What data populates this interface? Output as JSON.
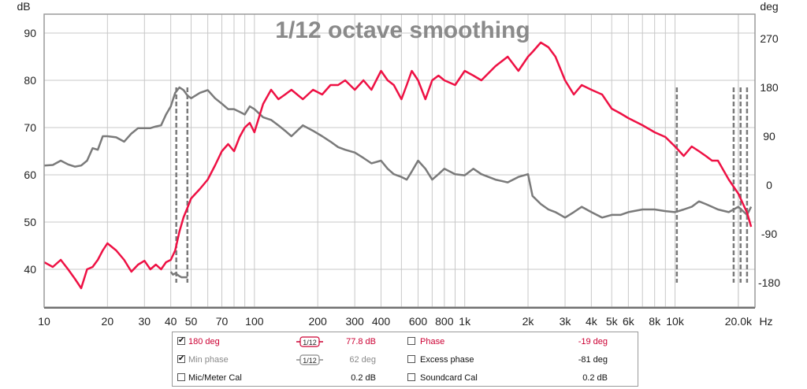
{
  "chart_data": {
    "type": "line",
    "title": "1/12 octave smoothing",
    "ylabel_left": "dB",
    "ylabel_right": "deg",
    "xlabel_unit": "Hz",
    "x_scale": "log",
    "xlim": [
      10,
      24000
    ],
    "ylim_left": [
      32,
      94
    ],
    "ylim_right": [
      -225,
      315
    ],
    "grid": true,
    "x_ticks": [
      {
        "v": 10,
        "label": "10"
      },
      {
        "v": 20,
        "label": "20"
      },
      {
        "v": 30,
        "label": "30"
      },
      {
        "v": 40,
        "label": "40"
      },
      {
        "v": 50,
        "label": "50"
      },
      {
        "v": 70,
        "label": "70"
      },
      {
        "v": 100,
        "label": "100"
      },
      {
        "v": 200,
        "label": "200"
      },
      {
        "v": 300,
        "label": "300"
      },
      {
        "v": 400,
        "label": "400"
      },
      {
        "v": 600,
        "label": "600"
      },
      {
        "v": 800,
        "label": "800"
      },
      {
        "v": 1000,
        "label": "1k"
      },
      {
        "v": 2000,
        "label": "2k"
      },
      {
        "v": 3000,
        "label": "3k"
      },
      {
        "v": 4000,
        "label": "4k"
      },
      {
        "v": 5000,
        "label": "5k"
      },
      {
        "v": 6000,
        "label": "6k"
      },
      {
        "v": 8000,
        "label": "8k"
      },
      {
        "v": 10000,
        "label": "10k"
      },
      {
        "v": 20000,
        "label": "20.0k"
      }
    ],
    "y_ticks_left": [
      {
        "v": 40,
        "label": "40"
      },
      {
        "v": 50,
        "label": "50"
      },
      {
        "v": 60,
        "label": "60"
      },
      {
        "v": 70,
        "label": "70"
      },
      {
        "v": 80,
        "label": "80"
      },
      {
        "v": 90,
        "label": "90"
      }
    ],
    "y_ticks_right": [
      {
        "v": -180,
        "label": "-180"
      },
      {
        "v": -90,
        "label": "-90"
      },
      {
        "v": 0,
        "label": "0"
      },
      {
        "v": 90,
        "label": "90"
      },
      {
        "v": 180,
        "label": "180"
      },
      {
        "v": 270,
        "label": "270"
      }
    ],
    "series": [
      {
        "name": "180 deg",
        "axis": "left",
        "color": "#ee1144",
        "x": [
          10,
          11,
          12,
          13,
          14,
          15,
          16,
          17,
          18,
          19,
          20,
          22,
          24,
          26,
          28,
          30,
          32,
          34,
          36,
          38,
          40,
          42,
          44,
          46,
          48,
          50,
          55,
          60,
          65,
          70,
          75,
          80,
          85,
          90,
          95,
          100,
          110,
          120,
          130,
          140,
          150,
          170,
          190,
          210,
          230,
          250,
          270,
          300,
          330,
          360,
          400,
          430,
          460,
          500,
          530,
          560,
          600,
          650,
          700,
          750,
          800,
          900,
          1000,
          1100,
          1200,
          1400,
          1600,
          1800,
          2000,
          2100,
          2300,
          2500,
          2700,
          3000,
          3300,
          3600,
          4000,
          4500,
          5000,
          5500,
          6000,
          7000,
          8000,
          9000,
          10000,
          11000,
          12000,
          13000,
          14000,
          15000,
          16000,
          18000,
          20000,
          22000,
          23000
        ],
        "y": [
          41.5,
          40.5,
          42,
          40,
          38,
          36,
          40,
          40.5,
          42,
          44,
          45.5,
          44,
          42,
          39.5,
          41,
          41.8,
          40,
          41,
          40,
          41.5,
          42,
          44,
          48,
          51,
          53,
          55,
          57,
          59,
          62,
          65,
          66.5,
          65,
          68,
          70,
          71,
          69,
          75,
          78,
          76,
          77,
          78,
          76,
          78,
          77,
          79,
          79,
          80,
          78,
          80,
          78,
          82,
          80,
          79,
          76,
          79,
          82,
          80,
          76,
          80,
          81,
          80,
          79,
          82,
          81,
          80,
          83,
          85,
          82,
          85,
          86,
          88,
          87,
          85,
          80,
          77,
          79,
          78,
          77,
          74,
          73,
          72,
          70.5,
          69,
          68,
          66,
          64,
          66,
          65,
          64,
          63,
          63,
          59,
          56,
          52,
          49
        ]
      },
      {
        "name": "Min phase",
        "axis": "right",
        "color": "#7a7a7a",
        "x": [
          10,
          11,
          12,
          13,
          14,
          15,
          16,
          17,
          18,
          19,
          20,
          22,
          24,
          26,
          28,
          30,
          32,
          34,
          36,
          38,
          40,
          42,
          44,
          46,
          48,
          50,
          55,
          60,
          65,
          70,
          75,
          80,
          85,
          90,
          95,
          100,
          110,
          120,
          130,
          140,
          150,
          170,
          190,
          210,
          230,
          250,
          270,
          300,
          330,
          360,
          400,
          430,
          460,
          500,
          530,
          560,
          600,
          650,
          700,
          750,
          800,
          900,
          1000,
          1100,
          1200,
          1400,
          1600,
          1800,
          2000,
          2100,
          2300,
          2500,
          2700,
          3000,
          3300,
          3600,
          4000,
          4500,
          5000,
          5500,
          6000,
          7000,
          8000,
          9000,
          10000,
          11000,
          12000,
          13000,
          14000,
          15000,
          16000,
          18000,
          20000,
          22000,
          23000
        ],
        "y": [
          36,
          37,
          45,
          38,
          34,
          36,
          45,
          68,
          65,
          90,
          90,
          88,
          80,
          95,
          105,
          105,
          105,
          108,
          110,
          130,
          145,
          170,
          180,
          175,
          165,
          160,
          170,
          175,
          160,
          150,
          140,
          140,
          135,
          130,
          145,
          140,
          125,
          120,
          110,
          100,
          90,
          110,
          100,
          90,
          80,
          70,
          65,
          60,
          50,
          40,
          45,
          30,
          20,
          15,
          10,
          25,
          45,
          30,
          10,
          20,
          30,
          20,
          18,
          30,
          20,
          10,
          5,
          15,
          20,
          -20,
          -35,
          -45,
          -50,
          -60,
          -50,
          -40,
          -50,
          -60,
          -55,
          -55,
          -50,
          -45,
          -45,
          -48,
          -50,
          -45,
          -40,
          -30,
          -35,
          -40,
          -45,
          -50,
          -40,
          -55,
          -40
        ]
      }
    ],
    "min_phase_wrap_segments": [
      {
        "x": [
          40,
          41,
          42,
          43,
          44,
          45,
          46,
          47,
          48
        ],
        "y": [
          -160,
          -165,
          -163,
          -165,
          -168,
          -170,
          -170,
          -170,
          -170
        ]
      }
    ],
    "wrap_markers_hz": [
      42.5,
      48,
      10200,
      19000,
      20500,
      22000
    ]
  },
  "legend": {
    "rows": [
      {
        "label": "180 deg",
        "checked": true,
        "color": "#cc0033",
        "smoothing": "1/12",
        "value": "77.8 dB",
        "value_color": "#cc0033"
      },
      {
        "label": "Min phase",
        "checked": true,
        "color": "#8a8a8a",
        "smoothing": "1/12",
        "value": "62 deg",
        "value_color": "#8a8a8a"
      },
      {
        "label": "Mic/Meter Cal",
        "checked": false,
        "color": "#111111",
        "smoothing": "",
        "value": "0.2 dB",
        "value_color": "#111111"
      }
    ],
    "right_rows": [
      {
        "label": "Phase",
        "checked": false,
        "color": "#cc0033",
        "value": "-19 deg",
        "value_color": "#cc0033"
      },
      {
        "label": "Excess phase",
        "checked": false,
        "color": "#111111",
        "value": "-81 deg",
        "value_color": "#111111"
      },
      {
        "label": "Soundcard Cal",
        "checked": false,
        "color": "#111111",
        "value": "0.2 dB",
        "value_color": "#111111"
      }
    ]
  }
}
